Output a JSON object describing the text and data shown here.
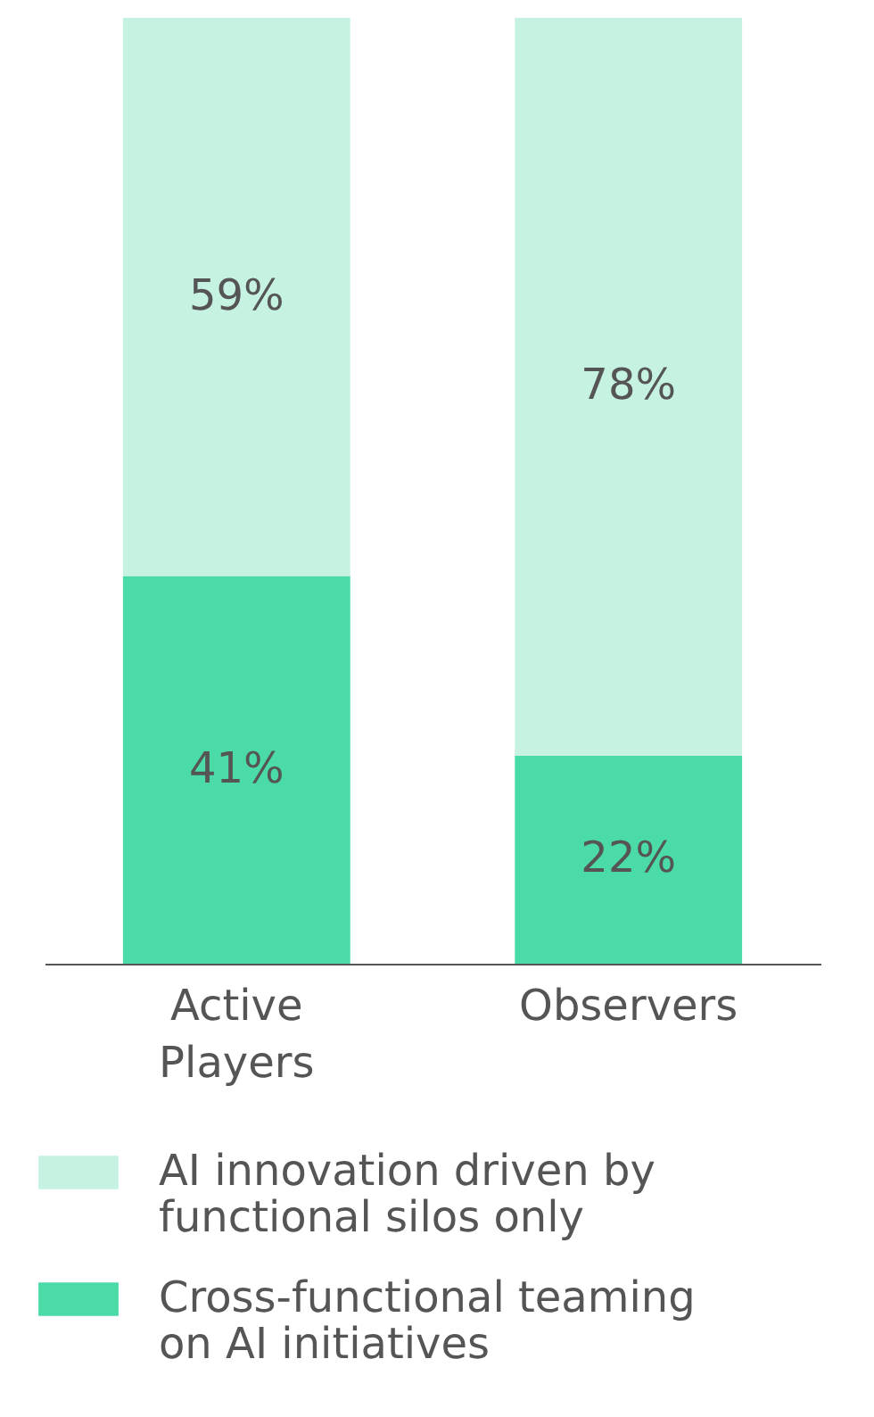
{
  "chart_data": {
    "type": "bar",
    "stacked": true,
    "legend": "bottom",
    "grid": false,
    "categories": [
      "Active Players",
      "Observers"
    ],
    "series": [
      {
        "name": "Cross-functional teaming on AI initiatives",
        "color": "#4adba7",
        "values": [
          41,
          22
        ],
        "value_labels": [
          "41%",
          "22%"
        ]
      },
      {
        "name": "AI innovation driven by functional silos only",
        "color": "#c6f3e1",
        "values": [
          59,
          78
        ],
        "value_labels": [
          "59%",
          "78%"
        ]
      }
    ]
  }
}
